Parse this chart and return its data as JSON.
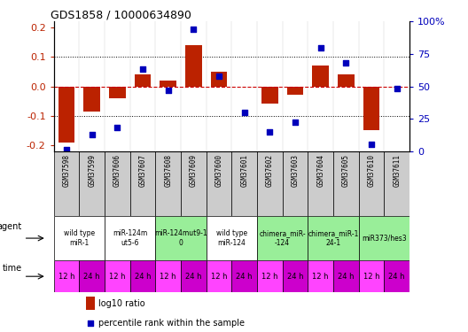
{
  "title": "GDS1858 / 10000634890",
  "samples": [
    "GSM37598",
    "GSM37599",
    "GSM37606",
    "GSM37607",
    "GSM37608",
    "GSM37609",
    "GSM37600",
    "GSM37601",
    "GSM37602",
    "GSM37603",
    "GSM37604",
    "GSM37605",
    "GSM37610",
    "GSM37611"
  ],
  "log10_ratio": [
    -0.19,
    -0.085,
    -0.04,
    0.04,
    0.02,
    0.14,
    0.05,
    0.0,
    -0.06,
    -0.03,
    0.07,
    0.04,
    -0.15,
    0.0
  ],
  "percentile_rank": [
    1,
    13,
    18,
    63,
    47,
    94,
    58,
    30,
    15,
    22,
    80,
    68,
    5,
    48
  ],
  "agents": [
    {
      "label": "wild type\nmiR-1",
      "cols": [
        0,
        1
      ],
      "color": "#ffffff"
    },
    {
      "label": "miR-124m\nut5-6",
      "cols": [
        2,
        3
      ],
      "color": "#ffffff"
    },
    {
      "label": "miR-124mut9-1\n0",
      "cols": [
        4,
        5
      ],
      "color": "#99ee99"
    },
    {
      "label": "wild type\nmiR-124",
      "cols": [
        6,
        7
      ],
      "color": "#ffffff"
    },
    {
      "label": "chimera_miR-\n-124",
      "cols": [
        8,
        9
      ],
      "color": "#99ee99"
    },
    {
      "label": "chimera_miR-1\n24-1",
      "cols": [
        10,
        11
      ],
      "color": "#99ee99"
    },
    {
      "label": "miR373/hes3",
      "cols": [
        12,
        13
      ],
      "color": "#99ee99"
    }
  ],
  "times": [
    "12 h",
    "24 h",
    "12 h",
    "24 h",
    "12 h",
    "24 h",
    "12 h",
    "24 h",
    "12 h",
    "24 h",
    "12 h",
    "24 h",
    "12 h",
    "24 h"
  ],
  "bar_color": "#bb2200",
  "dot_color": "#0000bb",
  "ylim": [
    -0.22,
    0.22
  ],
  "yticks": [
    -0.2,
    -0.1,
    0.0,
    0.1,
    0.2
  ],
  "y2ticks": [
    0,
    25,
    50,
    75,
    100
  ],
  "y2labels": [
    "0",
    "25",
    "50",
    "75",
    "100%"
  ],
  "hline_color": "#cc0000",
  "dotted_color": "#000000",
  "bg_color": "#ffffff",
  "sample_bg": "#cccccc",
  "time_col_a": "#ff44ff",
  "time_col_b": "#cc00cc",
  "legend_bar_color": "#bb2200",
  "legend_dot_color": "#0000bb"
}
